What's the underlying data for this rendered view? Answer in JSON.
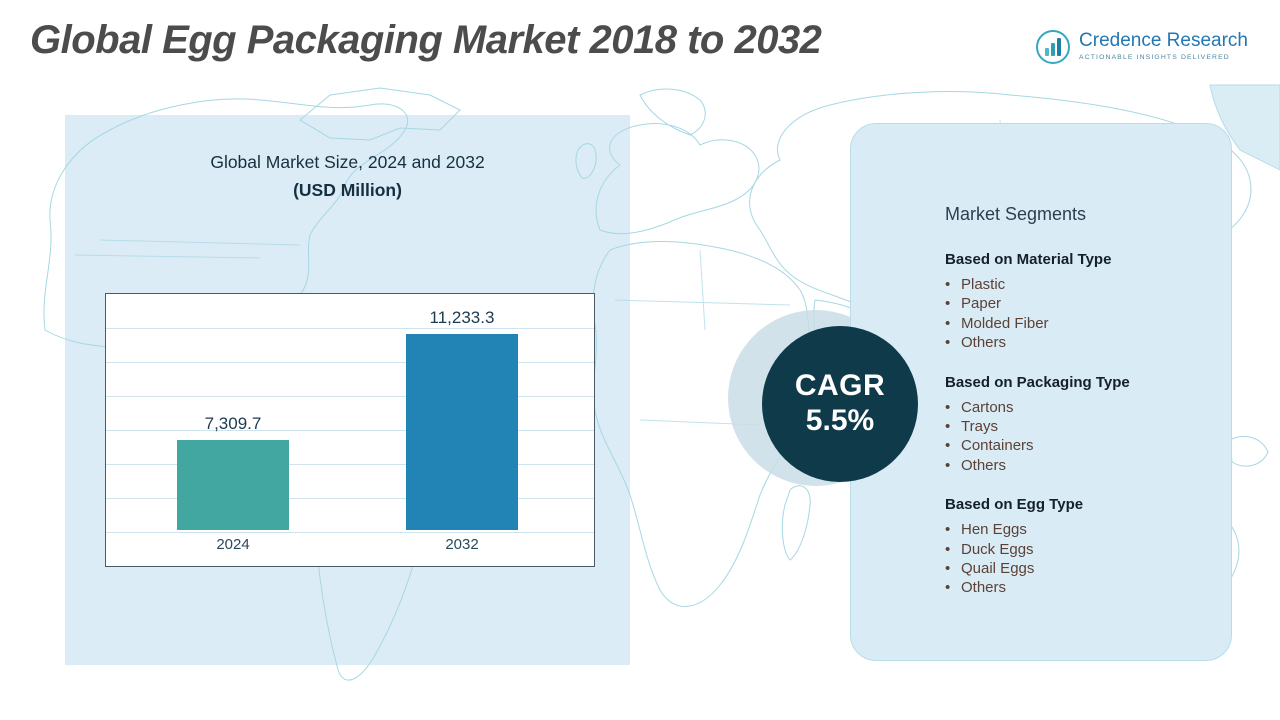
{
  "header": {
    "title": "Global Egg Packaging Market 2018 to 2032",
    "logo": {
      "name": "Credence Research",
      "tagline": "Actionable Insights Delivered"
    }
  },
  "chart_data": {
    "type": "bar",
    "title": "Global Market Size, 2024 and 2032",
    "subtitle": "(USD Million)",
    "categories": [
      "2024",
      "2032"
    ],
    "values": [
      7309.7,
      11233.3
    ],
    "value_labels": [
      "7,309.7",
      "11,233.3"
    ],
    "ylim": [
      4000,
      12800
    ],
    "grid": true,
    "legend_position": "none",
    "bar_colors": [
      "#43a7a1",
      "#2184b4"
    ]
  },
  "cagr": {
    "label": "CAGR",
    "value": "5.5%"
  },
  "segments": {
    "title": "Market Segments",
    "groups": [
      {
        "heading": "Based on Material Type",
        "items": [
          "Plastic",
          "Paper",
          "Molded Fiber",
          "Others"
        ]
      },
      {
        "heading": "Based on Packaging Type",
        "items": [
          "Cartons",
          "Trays",
          "Containers",
          "Others"
        ]
      },
      {
        "heading": "Based on Egg Type",
        "items": [
          "Hen Eggs",
          "Duck Eggs",
          "Quail Eggs",
          "Others"
        ]
      }
    ]
  },
  "colors": {
    "cagr_bg": "#0e3a4a",
    "panel_bg": "#d9ecf5",
    "accent_blue": "#2277b5",
    "bar_teal": "#43a7a1",
    "bar_blue": "#2184b4",
    "map_line": "#a6d7e4"
  }
}
